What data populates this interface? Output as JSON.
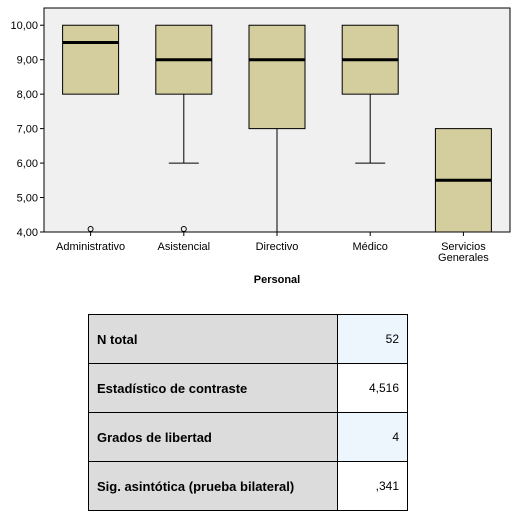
{
  "chart_data": {
    "type": "boxplot",
    "xlabel": "Personal",
    "ylabel": "",
    "ylim": [
      4,
      10.5
    ],
    "yticks": [
      "4,00",
      "5,00",
      "6,00",
      "7,00",
      "8,00",
      "9,00",
      "10,00"
    ],
    "ytick_values": [
      4,
      5,
      6,
      7,
      8,
      9,
      10
    ],
    "box_fill": "#d4cd9e",
    "plot_background": "#f0f0f0",
    "categories": [
      {
        "label": "Administrativo",
        "label_lines": [
          "Administrativo"
        ],
        "min": 8,
        "q1": 8,
        "median": 9.5,
        "q3": 10,
        "max": 10,
        "outliers": [
          4
        ]
      },
      {
        "label": "Asistencial",
        "label_lines": [
          "Asistencial"
        ],
        "min": 6,
        "q1": 8,
        "median": 9,
        "q3": 10,
        "max": 10,
        "outliers": [
          4
        ]
      },
      {
        "label": "Directivo",
        "label_lines": [
          "Directivo"
        ],
        "min": 4,
        "q1": 7,
        "median": 9,
        "q3": 10,
        "max": 10,
        "outliers": []
      },
      {
        "label": "Médico",
        "label_lines": [
          "Médico"
        ],
        "min": 6,
        "q1": 8,
        "median": 9,
        "q3": 10,
        "max": 10,
        "outliers": []
      },
      {
        "label": "Servicios Generales",
        "label_lines": [
          "Servicios",
          "Generales"
        ],
        "min": 4,
        "q1": 4,
        "median": 5.5,
        "q3": 7,
        "max": 7,
        "outliers": []
      }
    ]
  },
  "stats": {
    "rows": [
      {
        "label": "N total",
        "value": "52"
      },
      {
        "label": "Estadístico de contraste",
        "value": "4,516"
      },
      {
        "label": "Grados de libertad",
        "value": "4"
      },
      {
        "label": "Sig. asintótica (prueba bilateral)",
        "value": ",341"
      }
    ]
  }
}
